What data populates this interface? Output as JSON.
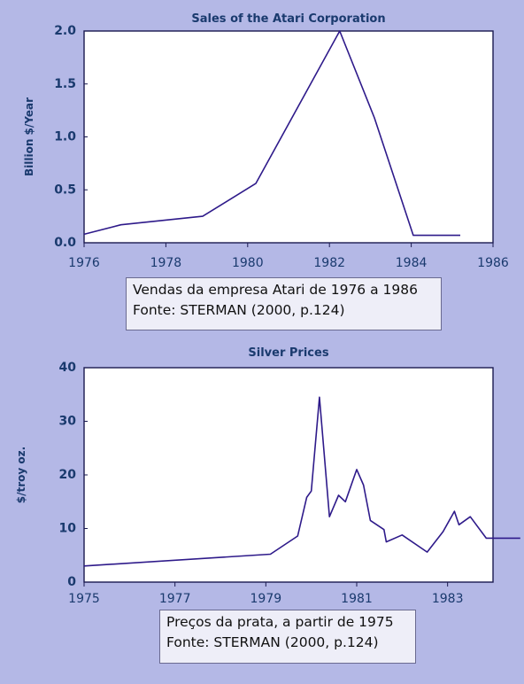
{
  "charts": {
    "atari": {
      "caption_line1": "Vendas da empresa Atari de 1976 a 1986",
      "caption_line2": "Fonte: STERMAN (2000, p.124)"
    },
    "silver": {
      "caption_line1": "Preços da prata, a partir de 1975",
      "caption_line2": "Fonte: STERMAN (2000, p.124)"
    }
  },
  "colors": {
    "background": "#b4b8e6",
    "plot_background": "#ffffff",
    "series_line": "#2e1a8a",
    "text": "#1a3a6e",
    "caption_background": "#eeeef8"
  },
  "chart_data": [
    {
      "type": "line",
      "title": "Sales of the Atari Corporation",
      "xlabel": "",
      "ylabel": "Billion $/Year",
      "xlim": [
        1976,
        1986
      ],
      "ylim": [
        0,
        2.0
      ],
      "x_ticks": [
        1976,
        1978,
        1980,
        1982,
        1984,
        1986
      ],
      "x_tick_labels": [
        "1976",
        "1978",
        "1980",
        "1982",
        "1984",
        "1986"
      ],
      "y_ticks": [
        0,
        0.5,
        1.0,
        1.5,
        2.0
      ],
      "y_tick_labels": [
        "0.0",
        "0.5",
        "1.0",
        "1.5",
        "2.0"
      ],
      "grid": false,
      "series": [
        {
          "x": [
            1976.0,
            1976.9,
            1978.9,
            1980.2,
            1982.25,
            1983.1,
            1984.05,
            1985.2
          ],
          "y": [
            0.08,
            0.17,
            0.25,
            0.56,
            2.0,
            1.18,
            0.07,
            0.07
          ]
        }
      ]
    },
    {
      "type": "line",
      "title": "Silver Prices",
      "xlabel": "",
      "ylabel": "$/troy oz.",
      "xlim": [
        1975,
        1984
      ],
      "ylim": [
        0,
        40
      ],
      "x_ticks": [
        1975,
        1977,
        1979,
        1981,
        1983
      ],
      "x_tick_labels": [
        "1975",
        "1977",
        "1979",
        "1981",
        "1983"
      ],
      "y_ticks": [
        0,
        10,
        20,
        30,
        40
      ],
      "y_tick_labels": [
        "0",
        "10",
        "20",
        "30",
        "40"
      ],
      "grid": false,
      "series": [
        {
          "x": [
            1975.0,
            1979.1,
            1979.7,
            1979.9,
            1980.0,
            1980.18,
            1980.4,
            1980.6,
            1980.75,
            1981.0,
            1981.15,
            1981.3,
            1981.6,
            1981.65,
            1982.0,
            1982.55,
            1982.9,
            1983.15,
            1983.25,
            1983.5,
            1983.85,
            1984.0,
            1984.6
          ],
          "y": [
            3.0,
            5.2,
            8.6,
            15.8,
            17.0,
            34.5,
            12.2,
            16.2,
            15.0,
            21.0,
            18.1,
            11.5,
            9.8,
            7.5,
            8.8,
            5.6,
            9.4,
            13.2,
            10.7,
            12.2,
            8.2,
            8.2,
            8.2
          ]
        }
      ]
    }
  ]
}
